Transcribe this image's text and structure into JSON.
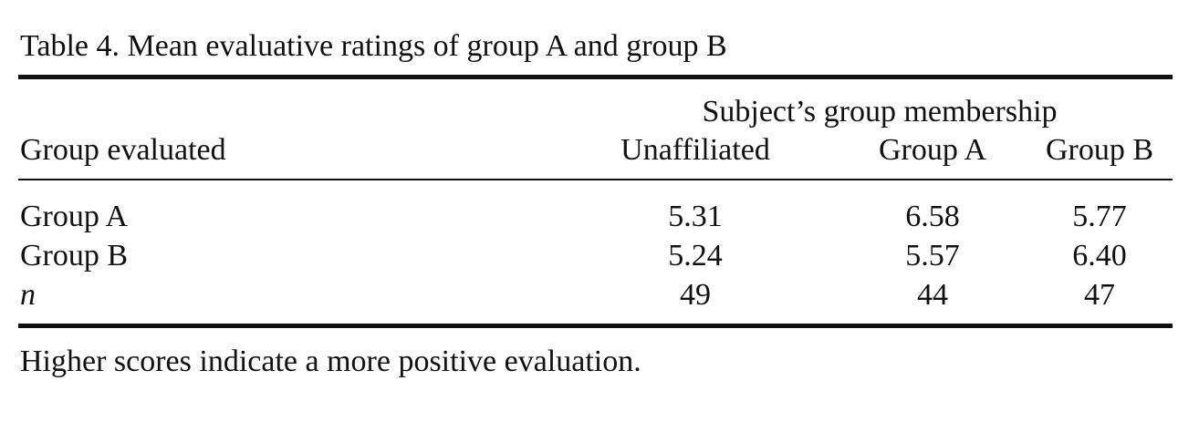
{
  "caption": "Table 4. Mean evaluative ratings of group A and group B",
  "table": {
    "spanner": "Subject’s group membership",
    "columns": [
      "Group evaluated",
      "Unaffiliated",
      "Group A",
      "Group B"
    ],
    "rows": [
      [
        "Group A",
        "5.31",
        "6.58",
        "5.77"
      ],
      [
        "Group B",
        "5.24",
        "5.57",
        "6.40"
      ],
      [
        "n",
        "49",
        "44",
        "47"
      ]
    ]
  },
  "note": "Higher scores indicate a more positive evaluation."
}
